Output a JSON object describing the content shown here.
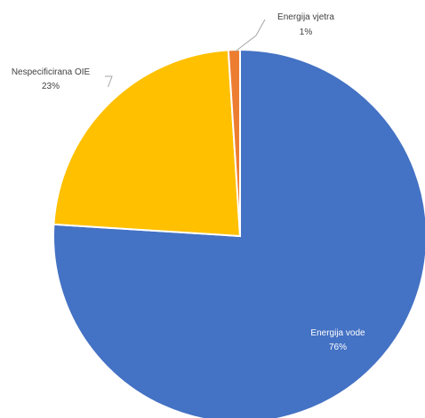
{
  "chart_data": {
    "type": "pie",
    "title": "",
    "slices": [
      {
        "name": "Energija vode",
        "value": 76,
        "pct_label": "76%",
        "color": "#4472C4"
      },
      {
        "name": "Nespecificirana OIE",
        "value": 23,
        "pct_label": "23%",
        "color": "#FFC000"
      },
      {
        "name": "Energija vjetra",
        "value": 1,
        "pct_label": "1%",
        "color": "#ED7D31"
      }
    ],
    "start_angle_deg": 0,
    "direction": "clockwise",
    "legend": "none"
  }
}
